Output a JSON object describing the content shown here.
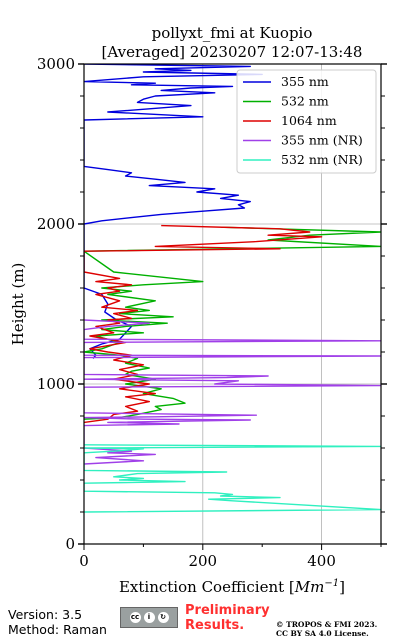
{
  "chart_data": {
    "type": "line",
    "title": "pollyxt_fmi at Kuopio",
    "subtitle": "[Averaged] 20230207 12:07-13:48",
    "xlabel": "Extinction Coefficient [$Mm^{-1}$]",
    "xlabel_text": "Extinction Coefficient [",
    "xlabel_unit": "Mm",
    "xlabel_exp": "−1",
    "xlabel_close": "]",
    "ylabel": "Height (m)",
    "xlim": [
      0,
      500
    ],
    "ylim": [
      0,
      3000
    ],
    "xticks": [
      0,
      200,
      400
    ],
    "yticks": [
      0,
      1000,
      2000,
      3000
    ],
    "grid": true,
    "legend_position": "top-right",
    "series": [
      {
        "name": "355 nm",
        "color": "#0000dd",
        "points": [
          [
            0,
            3000
          ],
          [
            280,
            2985
          ],
          [
            120,
            2970
          ],
          [
            180,
            2960
          ],
          [
            100,
            2950
          ],
          [
            300,
            2935
          ],
          [
            100,
            2920
          ],
          [
            0,
            2890
          ],
          [
            120,
            2880
          ],
          [
            80,
            2870
          ],
          [
            250,
            2860
          ],
          [
            180,
            2850
          ],
          [
            130,
            2835
          ],
          [
            220,
            2820
          ],
          [
            120,
            2800
          ],
          [
            100,
            2780
          ],
          [
            90,
            2760
          ],
          [
            180,
            2740
          ],
          [
            40,
            2700
          ],
          [
            200,
            2670
          ],
          [
            0,
            2650
          ],
          [
            0,
            2360
          ],
          [
            40,
            2340
          ],
          [
            80,
            2320
          ],
          [
            70,
            2300
          ],
          [
            120,
            2280
          ],
          [
            170,
            2260
          ],
          [
            110,
            2240
          ],
          [
            220,
            2220
          ],
          [
            190,
            2200
          ],
          [
            260,
            2180
          ],
          [
            230,
            2160
          ],
          [
            280,
            2140
          ],
          [
            260,
            2120
          ],
          [
            270,
            2100
          ],
          [
            200,
            2080
          ],
          [
            130,
            2060
          ],
          [
            80,
            2040
          ],
          [
            30,
            2020
          ],
          [
            0,
            2000
          ],
          [
            0,
            1600
          ],
          [
            30,
            1560
          ],
          [
            40,
            1500
          ],
          [
            35,
            1450
          ],
          [
            55,
            1400
          ],
          [
            80,
            1360
          ],
          [
            70,
            1320
          ],
          [
            60,
            1280
          ],
          [
            30,
            1250
          ],
          [
            10,
            1220
          ],
          [
            20,
            1180
          ],
          [
            15,
            1160
          ]
        ]
      },
      {
        "name": "532 nm",
        "color": "#00b000",
        "points": [
          [
            230,
            1980
          ],
          [
            500,
            1950
          ],
          [
            380,
            1930
          ],
          [
            310,
            1900
          ],
          [
            500,
            1860
          ],
          [
            0,
            1830
          ],
          [
            0,
            1830
          ],
          [
            50,
            1700
          ],
          [
            200,
            1640
          ],
          [
            100,
            1620
          ],
          [
            30,
            1600
          ],
          [
            80,
            1580
          ],
          [
            40,
            1560
          ],
          [
            120,
            1520
          ],
          [
            70,
            1480
          ],
          [
            110,
            1460
          ],
          [
            60,
            1440
          ],
          [
            150,
            1420
          ],
          [
            30,
            1400
          ],
          [
            140,
            1380
          ],
          [
            70,
            1360
          ],
          [
            30,
            1340
          ],
          [
            100,
            1320
          ],
          [
            20,
            1300
          ],
          [
            60,
            1260
          ],
          [
            30,
            1220
          ],
          [
            0,
            1200
          ],
          [
            60,
            1180
          ],
          [
            90,
            1160
          ],
          [
            70,
            1130
          ],
          [
            110,
            1100
          ],
          [
            80,
            1080
          ],
          [
            70,
            1060
          ],
          [
            120,
            1030
          ],
          [
            70,
            1000
          ],
          [
            130,
            970
          ],
          [
            100,
            940
          ],
          [
            150,
            910
          ],
          [
            170,
            880
          ],
          [
            120,
            860
          ],
          [
            130,
            840
          ],
          [
            90,
            810
          ],
          [
            60,
            790
          ],
          [
            0,
            780
          ]
        ]
      },
      {
        "name": "1064 nm",
        "color": "#dd0000",
        "points": [
          [
            130,
            1990
          ],
          [
            330,
            1970
          ],
          [
            380,
            1950
          ],
          [
            310,
            1930
          ],
          [
            400,
            1920
          ],
          [
            290,
            1890
          ],
          [
            120,
            1860
          ],
          [
            330,
            1845
          ],
          [
            0,
            1830
          ],
          [
            0,
            1700
          ],
          [
            60,
            1660
          ],
          [
            20,
            1640
          ],
          [
            80,
            1620
          ],
          [
            40,
            1600
          ],
          [
            60,
            1580
          ],
          [
            20,
            1560
          ],
          [
            60,
            1520
          ],
          [
            30,
            1480
          ],
          [
            90,
            1460
          ],
          [
            50,
            1440
          ],
          [
            80,
            1410
          ],
          [
            40,
            1400
          ],
          [
            60,
            1380
          ],
          [
            20,
            1360
          ],
          [
            50,
            1320
          ],
          [
            10,
            1300
          ],
          [
            70,
            1260
          ],
          [
            10,
            1220
          ],
          [
            40,
            1200
          ],
          [
            80,
            1180
          ],
          [
            50,
            1150
          ],
          [
            100,
            1120
          ],
          [
            60,
            1090
          ],
          [
            90,
            1060
          ],
          [
            50,
            1030
          ],
          [
            110,
            1000
          ],
          [
            60,
            970
          ],
          [
            120,
            940
          ],
          [
            70,
            920
          ],
          [
            110,
            890
          ],
          [
            70,
            860
          ],
          [
            90,
            830
          ],
          [
            50,
            810
          ],
          [
            40,
            780
          ],
          [
            0,
            760
          ]
        ]
      },
      {
        "name": "355 nm (NR)",
        "color": "#a040e8",
        "points": [
          [
            0,
            1400
          ],
          [
            110,
            1380
          ],
          [
            40,
            1360
          ],
          [
            0,
            1340
          ],
          [
            0,
            1280
          ],
          [
            500,
            1270
          ],
          [
            0,
            1260
          ],
          [
            0,
            1180
          ],
          [
            500,
            1175
          ],
          [
            0,
            1165
          ],
          [
            0,
            1060
          ],
          [
            310,
            1050
          ],
          [
            240,
            1040
          ],
          [
            0,
            1030
          ],
          [
            260,
            1020
          ],
          [
            220,
            1000
          ],
          [
            500,
            990
          ],
          [
            0,
            980
          ],
          [
            0,
            820
          ],
          [
            290,
            805
          ],
          [
            120,
            795
          ],
          [
            0,
            790
          ],
          [
            100,
            780
          ],
          [
            280,
            775
          ],
          [
            40,
            760
          ],
          [
            160,
            750
          ],
          [
            0,
            740
          ],
          [
            0,
            600
          ],
          [
            80,
            580
          ],
          [
            40,
            570
          ],
          [
            120,
            560
          ],
          [
            20,
            540
          ],
          [
            100,
            520
          ],
          [
            0,
            500
          ]
        ]
      },
      {
        "name": "532 nm (NR)",
        "color": "#30f0c0",
        "points": [
          [
            0,
            620
          ],
          [
            500,
            610
          ],
          [
            0,
            600
          ],
          [
            100,
            595
          ],
          [
            50,
            580
          ],
          [
            0,
            570
          ],
          [
            0,
            460
          ],
          [
            240,
            450
          ],
          [
            90,
            440
          ],
          [
            50,
            420
          ],
          [
            100,
            410
          ],
          [
            60,
            400
          ],
          [
            170,
            390
          ],
          [
            0,
            380
          ],
          [
            0,
            330
          ],
          [
            220,
            320
          ],
          [
            250,
            310
          ],
          [
            230,
            300
          ],
          [
            330,
            290
          ],
          [
            210,
            280
          ],
          [
            250,
            270
          ],
          [
            500,
            215
          ],
          [
            0,
            200
          ]
        ]
      }
    ]
  },
  "footer": {
    "version": "Version: 3.5",
    "method": "Method: Raman",
    "preliminary_line1": "Preliminary",
    "preliminary_line2": "Results.",
    "copyright_line1": "© TROPOS & FMI 2023.",
    "copyright_line2": "CC BY SA 4.0 License."
  }
}
